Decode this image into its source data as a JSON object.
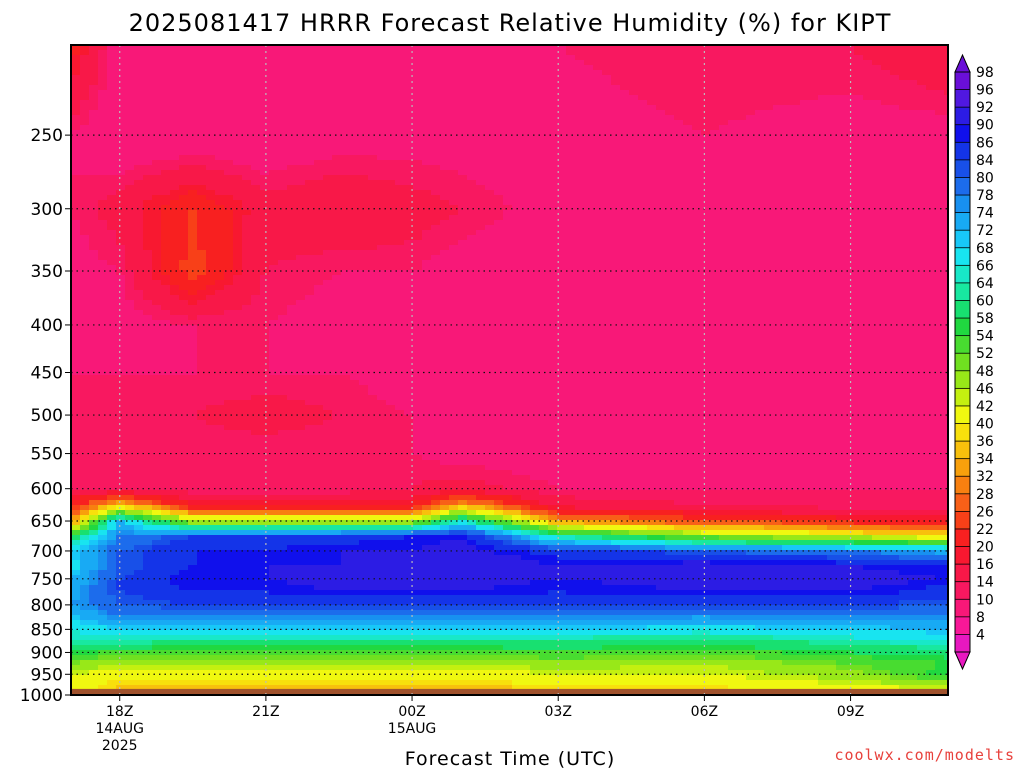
{
  "chart_data": {
    "type": "heatmap",
    "title": "2025081417 HRRR Forecast Relative Humidity (%) for KIPT",
    "xlabel": "Forecast Time (UTC)",
    "ylabel": "",
    "credit": "coolwx.com/modelts",
    "x_ticks": [
      {
        "label": "18Z",
        "sub1": "14AUG",
        "sub2": "2025",
        "hour": 0
      },
      {
        "label": "21Z",
        "sub1": "",
        "sub2": "",
        "hour": 3
      },
      {
        "label": "00Z",
        "sub1": "15AUG",
        "sub2": "",
        "hour": 6
      },
      {
        "label": "03Z",
        "sub1": "",
        "sub2": "",
        "hour": 9
      },
      {
        "label": "06Z",
        "sub1": "",
        "sub2": "",
        "hour": 12
      },
      {
        "label": "09Z",
        "sub1": "",
        "sub2": "",
        "hour": 15
      }
    ],
    "xlim": [
      -1,
      17
    ],
    "y_scale": "log",
    "y_ticks": [
      "250",
      "300",
      "350",
      "400",
      "450",
      "500",
      "550",
      "600",
      "650",
      "700",
      "750",
      "800",
      "850",
      "900",
      "950",
      "1000"
    ],
    "ylim": [
      200,
      1000
    ],
    "surface_pressure": 985,
    "colorbar_labels": [
      "98",
      "96",
      "92",
      "90",
      "86",
      "84",
      "80",
      "78",
      "74",
      "72",
      "68",
      "66",
      "64",
      "60",
      "58",
      "54",
      "52",
      "48",
      "46",
      "42",
      "40",
      "36",
      "34",
      "32",
      "28",
      "26",
      "22",
      "20",
      "16",
      "14",
      "10",
      "8",
      "4"
    ],
    "colorbar_colors": [
      "#6a0fd8",
      "#5018e0",
      "#2c1ce4",
      "#1010ec",
      "#1434e8",
      "#1850e8",
      "#1c6cec",
      "#1890f0",
      "#18aaf4",
      "#18c8f8",
      "#18e4f0",
      "#18e8c8",
      "#18e8a0",
      "#18e070",
      "#20d840",
      "#48dc30",
      "#70e020",
      "#98e818",
      "#c4f010",
      "#f0f810",
      "#f8e00c",
      "#f8c00c",
      "#f8a00c",
      "#f88010",
      "#f86018",
      "#f84018",
      "#f82020",
      "#f81830",
      "#f81848",
      "#f81860",
      "#f81878",
      "#f81898",
      "#e818c0"
    ],
    "profile_levels": [
      200,
      250,
      300,
      350,
      400,
      450,
      500,
      550,
      600,
      625,
      650,
      675,
      700,
      725,
      750,
      775,
      800,
      825,
      850,
      875,
      900,
      925,
      950,
      975,
      1000
    ],
    "profiles": [
      {
        "hour": -1,
        "rh": [
          24,
          14,
          14,
          12,
          12,
          14,
          14,
          14,
          16,
          24,
          34,
          60,
          72,
          70,
          74,
          76,
          78,
          72,
          68,
          66,
          60,
          52,
          46,
          46,
          40
        ]
      },
      {
        "hour": 0,
        "rh": [
          12,
          10,
          18,
          14,
          12,
          14,
          14,
          14,
          16,
          38,
          74,
          80,
          84,
          84,
          86,
          86,
          84,
          80,
          72,
          66,
          56,
          48,
          44,
          40,
          40
        ]
      },
      {
        "hour": 1.5,
        "rh": [
          12,
          10,
          26,
          28,
          14,
          14,
          16,
          14,
          14,
          22,
          48,
          86,
          90,
          90,
          92,
          90,
          86,
          80,
          72,
          64,
          56,
          48,
          44,
          40,
          38
        ]
      },
      {
        "hour": 3,
        "rh": [
          12,
          10,
          18,
          16,
          14,
          14,
          18,
          14,
          14,
          22,
          48,
          88,
          90,
          92,
          92,
          90,
          86,
          80,
          72,
          64,
          56,
          48,
          44,
          40,
          36
        ]
      },
      {
        "hour": 4.5,
        "rh": [
          12,
          12,
          20,
          14,
          12,
          14,
          16,
          14,
          14,
          22,
          48,
          88,
          92,
          92,
          94,
          92,
          86,
          80,
          72,
          64,
          56,
          48,
          44,
          40,
          36
        ]
      },
      {
        "hour": 6,
        "rh": [
          12,
          12,
          18,
          14,
          12,
          12,
          14,
          14,
          16,
          22,
          48,
          90,
          92,
          94,
          94,
          92,
          86,
          80,
          72,
          64,
          56,
          48,
          44,
          40,
          36
        ]
      },
      {
        "hour": 7,
        "rh": [
          12,
          12,
          16,
          12,
          12,
          12,
          12,
          12,
          18,
          36,
          68,
          92,
          94,
          96,
          94,
          92,
          86,
          80,
          72,
          64,
          56,
          48,
          44,
          40,
          36
        ]
      },
      {
        "hour": 9,
        "rh": [
          14,
          12,
          12,
          10,
          10,
          10,
          10,
          12,
          14,
          18,
          34,
          66,
          88,
          92,
          92,
          90,
          86,
          80,
          72,
          64,
          58,
          50,
          46,
          42,
          38
        ]
      },
      {
        "hour": 12,
        "rh": [
          16,
          14,
          12,
          10,
          10,
          10,
          10,
          12,
          14,
          16,
          28,
          52,
          84,
          94,
          94,
          92,
          86,
          78,
          70,
          62,
          56,
          48,
          46,
          42,
          40
        ]
      },
      {
        "hour": 15,
        "rh": [
          16,
          12,
          12,
          10,
          10,
          10,
          12,
          12,
          14,
          14,
          24,
          46,
          80,
          92,
          94,
          92,
          86,
          80,
          72,
          66,
          60,
          54,
          50,
          46,
          42
        ]
      },
      {
        "hour": 17,
        "rh": [
          20,
          12,
          12,
          10,
          10,
          10,
          12,
          12,
          14,
          14,
          22,
          42,
          76,
          90,
          92,
          88,
          84,
          80,
          74,
          68,
          62,
          58,
          60,
          48,
          44
        ]
      }
    ]
  }
}
